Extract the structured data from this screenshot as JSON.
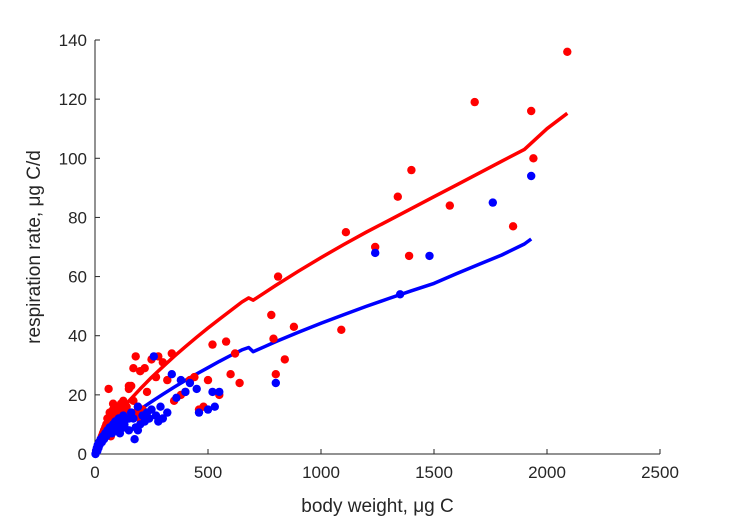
{
  "chart_data": {
    "type": "scatter",
    "xlabel": "body weight, μg C",
    "ylabel": "respiration rate, μg C/d",
    "xlim": [
      0,
      2500
    ],
    "ylim": [
      0,
      140
    ],
    "xticks": [
      0,
      500,
      1000,
      1500,
      2000,
      2500
    ],
    "yticks": [
      0,
      20,
      40,
      60,
      80,
      100,
      120,
      140
    ],
    "grid": false,
    "legend": "none",
    "series": [
      {
        "kind": "points",
        "color": "#ff0000",
        "x": [
          5,
          10,
          15,
          20,
          25,
          30,
          35,
          40,
          45,
          50,
          55,
          60,
          65,
          70,
          75,
          80,
          85,
          90,
          95,
          100,
          105,
          110,
          115,
          120,
          125,
          130,
          140,
          150,
          160,
          170,
          180,
          190,
          200,
          210,
          220,
          230,
          250,
          270,
          280,
          300,
          320,
          340,
          350,
          380,
          400,
          420,
          440,
          460,
          480,
          500,
          520,
          550,
          580,
          600,
          620,
          640,
          780,
          790,
          800,
          810,
          840,
          880,
          1090,
          1110,
          1240,
          1340,
          1390,
          1400,
          1570,
          1680,
          1850,
          1930,
          1940,
          2090,
          60,
          80,
          90,
          100,
          120,
          150,
          170,
          180,
          200,
          220
        ],
        "y": [
          1,
          2,
          3,
          4,
          5,
          6,
          7,
          8,
          9,
          10,
          12,
          8,
          14,
          6,
          9,
          17,
          12,
          16,
          12,
          10,
          15,
          11,
          17,
          13,
          18,
          14,
          16,
          22,
          23,
          18,
          33,
          16,
          28,
          15,
          29,
          21,
          32,
          26,
          33,
          31,
          25,
          34,
          18,
          20,
          21,
          25,
          26,
          15,
          16,
          25,
          37,
          20,
          38,
          27,
          34,
          24,
          47,
          39,
          27,
          60,
          32,
          43,
          42,
          75,
          70,
          87,
          67,
          96,
          84,
          119,
          77,
          116,
          100,
          136,
          22,
          15,
          13,
          11,
          12,
          23,
          29,
          14,
          12,
          14
        ]
      },
      {
        "kind": "points",
        "color": "#0000ff",
        "x": [
          2,
          5,
          8,
          10,
          12,
          15,
          18,
          20,
          25,
          30,
          35,
          40,
          45,
          50,
          55,
          60,
          65,
          70,
          75,
          80,
          85,
          90,
          95,
          100,
          105,
          110,
          115,
          120,
          125,
          130,
          140,
          150,
          160,
          170,
          180,
          190,
          200,
          210,
          220,
          230,
          240,
          250,
          260,
          270,
          280,
          290,
          300,
          320,
          340,
          360,
          380,
          400,
          420,
          450,
          460,
          500,
          520,
          530,
          550,
          800,
          1240,
          1350,
          1480,
          1760,
          1930,
          175,
          190,
          150,
          130,
          110
        ],
        "y": [
          0,
          1,
          2,
          1,
          3,
          2,
          4,
          3,
          5,
          4,
          6,
          5,
          7,
          6,
          8,
          7,
          9,
          8,
          7,
          10,
          8,
          11,
          9,
          10,
          12,
          8,
          11,
          9,
          13,
          10,
          12,
          8,
          14,
          12,
          9,
          16,
          10,
          13,
          11,
          14,
          12,
          15,
          33,
          13,
          11,
          16,
          12,
          14,
          27,
          19,
          25,
          21,
          24,
          22,
          14,
          15,
          21,
          16,
          21,
          24,
          68,
          54,
          67,
          85,
          94,
          5,
          8,
          12,
          9,
          7
        ]
      },
      {
        "kind": "line",
        "color": "#ff0000",
        "x": [
          0,
          50,
          100,
          150,
          200,
          250,
          300,
          350,
          400,
          450,
          500,
          550,
          600,
          650,
          680,
          700,
          750,
          800,
          900,
          1000,
          1100,
          1200,
          1300,
          1400,
          1500,
          1600,
          1700,
          1800,
          1900,
          2000,
          2090
        ],
        "y": [
          0,
          8.1,
          13.4,
          17.9,
          22.0,
          25.9,
          29.5,
          33.0,
          36.3,
          39.5,
          42.6,
          45.6,
          48.5,
          51.4,
          52.8,
          52.0,
          54.5,
          57.0,
          61.8,
          66.4,
          70.8,
          75.0,
          79.0,
          83.0,
          87.0,
          91.0,
          95.0,
          99.0,
          103.0,
          110.0,
          115.2
        ]
      },
      {
        "kind": "line",
        "color": "#0000ff",
        "x": [
          0,
          50,
          100,
          150,
          200,
          250,
          300,
          350,
          400,
          450,
          500,
          550,
          600,
          650,
          680,
          700,
          750,
          800,
          900,
          1000,
          1100,
          1200,
          1300,
          1400,
          1500,
          1600,
          1700,
          1800,
          1900,
          1930
        ],
        "y": [
          0,
          5.6,
          9.2,
          12.3,
          15.1,
          17.7,
          20.2,
          22.6,
          24.9,
          27.1,
          29.2,
          31.3,
          33.3,
          35.2,
          36.0,
          34.6,
          36.3,
          38.0,
          41.2,
          44.2,
          47.1,
          49.9,
          52.6,
          55.2,
          57.7,
          61.0,
          64.2,
          67.3,
          71.0,
          72.7
        ]
      }
    ]
  }
}
